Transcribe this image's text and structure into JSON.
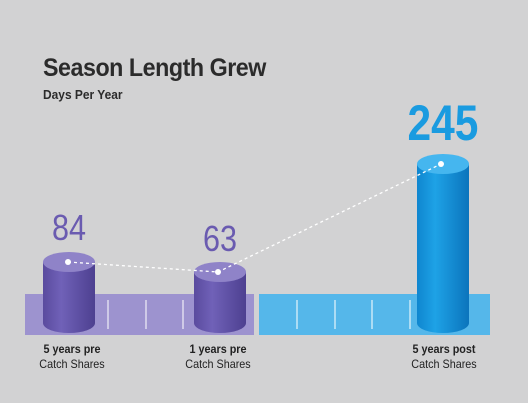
{
  "chart_data": {
    "type": "bar",
    "title": "Season Length Grew",
    "subtitle": "Days Per Year",
    "categories": [
      {
        "line1": "5 years pre",
        "line2": "Catch Shares"
      },
      {
        "line1": "1 years pre",
        "line2": "Catch Shares"
      },
      {
        "line1": "5 years post",
        "line2": "Catch Shares"
      }
    ],
    "values": [
      84,
      63,
      245
    ],
    "value_labels": [
      "84",
      "63",
      "245"
    ],
    "colors": {
      "pre": "#6a5bb0",
      "pre_top": "#8f83c8",
      "pre_band": "#9d93cf",
      "post": "#1a9be0",
      "post_top": "#45b6ef",
      "post_band": "#55b7ea",
      "pre_label": "#6a5bb0",
      "post_label": "#1a9be0"
    },
    "ylim": [
      0,
      300
    ],
    "grid": false,
    "legend": "none"
  }
}
